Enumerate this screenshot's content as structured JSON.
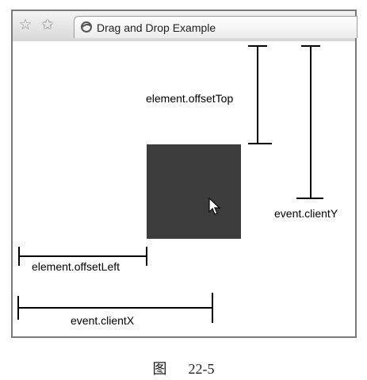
{
  "browser": {
    "tab_title": "Drag and Drop Example",
    "icons": [
      "star-icon",
      "bookmark-star-icon",
      "page-favicon-icon"
    ]
  },
  "annotations": {
    "offset_top": "element.offsetTop",
    "client_y": "event.clientY",
    "offset_left": "element.offsetLeft",
    "client_x": "event.clientX"
  },
  "caption": {
    "figure": "图",
    "number": "22-5"
  },
  "colors": {
    "draggable_box": "#3c3c3c",
    "window_border": "#7a7a7a"
  }
}
